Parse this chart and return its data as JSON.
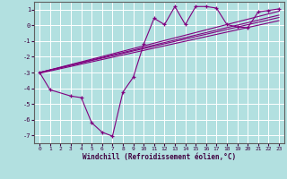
{
  "xlabel": "Windchill (Refroidissement éolien,°C)",
  "bg_color": "#b2e0e0",
  "grid_color": "#ffffff",
  "line_color": "#800080",
  "xlim": [
    -0.5,
    23.5
  ],
  "ylim": [
    -7.5,
    1.5
  ],
  "xticks": [
    0,
    1,
    2,
    3,
    4,
    5,
    6,
    7,
    8,
    9,
    10,
    11,
    12,
    13,
    14,
    15,
    16,
    17,
    18,
    19,
    20,
    21,
    22,
    23
  ],
  "yticks": [
    -7,
    -6,
    -5,
    -4,
    -3,
    -2,
    -1,
    0,
    1
  ],
  "zigzag_x": [
    0,
    1,
    3,
    4,
    5,
    6,
    7,
    8,
    9,
    10,
    11,
    12,
    13,
    14,
    15,
    16,
    17,
    18,
    19,
    20,
    21,
    22,
    23
  ],
  "zigzag_y": [
    -3.0,
    -4.1,
    -4.5,
    -4.6,
    -6.2,
    -6.8,
    -7.05,
    -4.25,
    -3.3,
    -1.2,
    0.45,
    0.05,
    1.2,
    0.05,
    1.2,
    1.2,
    1.1,
    0.05,
    -0.1,
    -0.15,
    0.85,
    0.95,
    1.05
  ],
  "line1_x": [
    0,
    23
  ],
  "line1_y": [
    -3.0,
    0.9
  ],
  "line2_x": [
    0,
    23
  ],
  "line2_y": [
    -3.0,
    0.65
  ],
  "line3_x": [
    0,
    23
  ],
  "line3_y": [
    -3.0,
    0.5
  ],
  "line4_x": [
    0,
    23
  ],
  "line4_y": [
    -3.05,
    0.3
  ]
}
